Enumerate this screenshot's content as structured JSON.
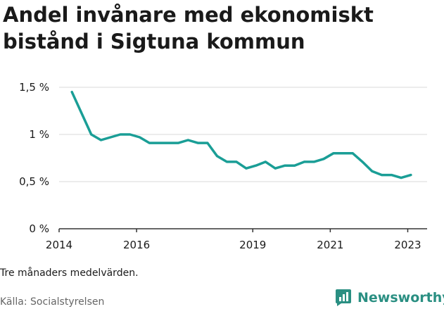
{
  "title": "Andel invånare med ekonomiskt bistånd i Sigtuna kommun",
  "note": "Tre månaders medelvärden.",
  "source": "Källa: Socialstyrelsen",
  "brand": {
    "name": "Newsworthy",
    "icon": "newsworthy-logo-icon"
  },
  "colors": {
    "line": "#1a9e96",
    "grid": "#d9d9d9",
    "axis": "#333333",
    "brand": "#2a8f82"
  },
  "chart_data": {
    "type": "line",
    "title": "Andel invånare med ekonomiskt bistånd i Sigtuna kommun",
    "xlabel": "",
    "ylabel": "",
    "x_range": [
      2014,
      2023.5
    ],
    "ylim": [
      0,
      1.5
    ],
    "y_ticks": [
      {
        "value": 0,
        "label": "0 %"
      },
      {
        "value": 0.5,
        "label": "0,5 %"
      },
      {
        "value": 1,
        "label": "1 %"
      },
      {
        "value": 1.5,
        "label": "1,5 %"
      }
    ],
    "x_ticks": [
      {
        "value": 2014,
        "label": "2014"
      },
      {
        "value": 2016,
        "label": "2016"
      },
      {
        "value": 2019,
        "label": "2019"
      },
      {
        "value": 2021,
        "label": "2021"
      },
      {
        "value": 2023,
        "label": "2023"
      }
    ],
    "grid": true,
    "series": [
      {
        "x": [
          2014.33,
          2014.83,
          2015.08,
          2015.33,
          2015.58,
          2015.83,
          2016.08,
          2016.33,
          2016.58,
          2016.83,
          2017.08,
          2017.33,
          2017.58,
          2017.83,
          2018.08,
          2018.33,
          2018.58,
          2018.83,
          2019.08,
          2019.33,
          2019.58,
          2019.83,
          2020.08,
          2020.33,
          2020.58,
          2020.83,
          2021.08,
          2021.33,
          2021.58,
          2021.83,
          2022.08,
          2022.33,
          2022.58,
          2022.83,
          2023.08
        ],
        "y": [
          1.45,
          1.0,
          0.94,
          0.97,
          1.0,
          1.0,
          0.97,
          0.91,
          0.91,
          0.91,
          0.91,
          0.94,
          0.91,
          0.91,
          0.77,
          0.71,
          0.71,
          0.64,
          0.67,
          0.71,
          0.64,
          0.67,
          0.67,
          0.71,
          0.71,
          0.74,
          0.8,
          0.8,
          0.8,
          0.71,
          0.61,
          0.57,
          0.57,
          0.54,
          0.57
        ]
      }
    ]
  }
}
